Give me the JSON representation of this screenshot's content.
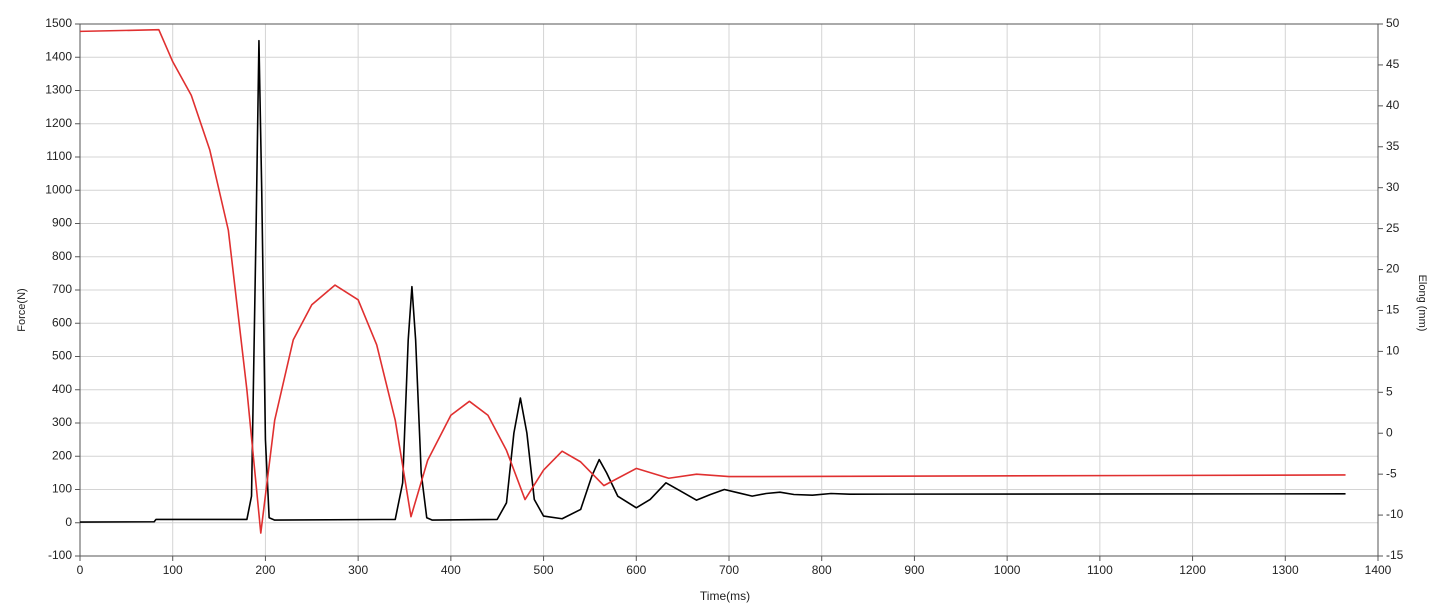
{
  "chart_data": {
    "type": "line",
    "x_label": "Time(ms)",
    "y_label": "Force(N)",
    "y2_label": "Elong (mm)",
    "xlim": [
      0,
      1400
    ],
    "xticks": [
      0,
      100,
      200,
      300,
      400,
      500,
      600,
      700,
      800,
      900,
      1000,
      1100,
      1200,
      1300,
      1400
    ],
    "ylim": [
      -100,
      1500
    ],
    "yticks": [
      -100,
      0,
      100,
      200,
      300,
      400,
      500,
      600,
      700,
      800,
      900,
      1000,
      1100,
      1200,
      1300,
      1400,
      1500
    ],
    "y2lim": [
      -15,
      50
    ],
    "y2ticks": [
      -15,
      -10,
      -5,
      0,
      5,
      10,
      15,
      20,
      25,
      30,
      35,
      40,
      45,
      50
    ],
    "grid": true,
    "series": [
      {
        "color": "#000000",
        "x": [
          0,
          80,
          82,
          180,
          185,
          190,
          193,
          196,
          200,
          204,
          210,
          340,
          348,
          354,
          358,
          362,
          368,
          374,
          380,
          450,
          460,
          468,
          475,
          482,
          490,
          500,
          520,
          540,
          552,
          560,
          568,
          580,
          600,
          615,
          632,
          648,
          665,
          680,
          695,
          710,
          725,
          740,
          755,
          770,
          790,
          810,
          830,
          1365
        ],
        "values": [
          2,
          3,
          10,
          10,
          80,
          900,
          1450,
          1000,
          250,
          15,
          8,
          10,
          120,
          550,
          710,
          550,
          150,
          15,
          8,
          10,
          60,
          270,
          375,
          270,
          70,
          20,
          12,
          40,
          140,
          190,
          150,
          80,
          45,
          70,
          120,
          95,
          68,
          85,
          100,
          90,
          80,
          88,
          92,
          85,
          83,
          88,
          86,
          87
        ]
      },
      {
        "color": "#e03030",
        "axis": "y2",
        "x": [
          0,
          85,
          100,
          120,
          140,
          160,
          180,
          195,
          210,
          230,
          250,
          275,
          300,
          320,
          340,
          357,
          375,
          400,
          420,
          440,
          460,
          480,
          500,
          520,
          540,
          565,
          600,
          635,
          665,
          700,
          1365
        ],
        "values": [
          49.1,
          49.3,
          45.4,
          41.3,
          34.6,
          24.8,
          5.3,
          -12.2,
          1.6,
          11.4,
          15.7,
          18.1,
          16.3,
          10.8,
          1.6,
          -10.2,
          -3.3,
          2.2,
          3.9,
          2.2,
          -2.1,
          -8.1,
          -4.5,
          -2.2,
          -3.5,
          -6.4,
          -4.3,
          -5.5,
          -5.0,
          -5.3,
          -5.1
        ]
      }
    ]
  }
}
